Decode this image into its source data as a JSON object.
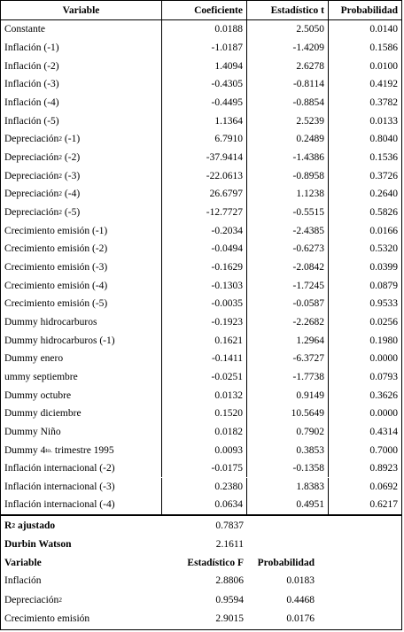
{
  "table": {
    "header": [
      "Variable",
      "Coeficiente",
      "Estadístico t",
      "Probabilidad"
    ],
    "rows": [
      {
        "variable": {
          "text": "Constante"
        },
        "values": [
          "0.0188",
          "2.5050",
          "0.0140"
        ]
      },
      {
        "variable": {
          "text": "Inflación (-1)"
        },
        "values": [
          "-1.0187",
          "-1.4209",
          "0.1586"
        ]
      },
      {
        "variable": {
          "text": "Inflación (-2)"
        },
        "values": [
          "1.4094",
          "2.6278",
          "0.0100"
        ]
      },
      {
        "variable": {
          "text": "Inflación (-3)"
        },
        "values": [
          "-0.4305",
          "-0.8114",
          "0.4192"
        ]
      },
      {
        "variable": {
          "text": "Inflación (-4)"
        },
        "values": [
          "-0.4495",
          "-0.8854",
          "0.3782"
        ]
      },
      {
        "variable": {
          "text": "Inflación (-5)"
        },
        "values": [
          "1.1364",
          "2.5239",
          "0.0133"
        ]
      },
      {
        "variable": {
          "text": "Depreciación",
          "sup": "2",
          "suffix": " (-1)"
        },
        "values": [
          "6.7910",
          "0.2489",
          "0.8040"
        ]
      },
      {
        "variable": {
          "text": "Depreciación",
          "sup": "2",
          "suffix": " (-2)"
        },
        "values": [
          "-37.9414",
          "-1.4386",
          "0.1536"
        ]
      },
      {
        "variable": {
          "text": "Depreciación",
          "sup": "2",
          "suffix": " (-3)"
        },
        "values": [
          "-22.0613",
          "-0.8958",
          "0.3726"
        ]
      },
      {
        "variable": {
          "text": "Depreciación",
          "sup": "2",
          "suffix": " (-4)"
        },
        "values": [
          "26.6797",
          "1.1238",
          "0.2640"
        ]
      },
      {
        "variable": {
          "text": "Depreciación",
          "sup": "2",
          "suffix": " (-5)"
        },
        "values": [
          "-12.7727",
          "-0.5515",
          "0.5826"
        ]
      },
      {
        "variable": {
          "text": "Crecimiento emisión (-1)"
        },
        "values": [
          "-0.2034",
          "-2.4385",
          "0.0166"
        ]
      },
      {
        "variable": {
          "text": "Crecimiento emisión (-2)"
        },
        "values": [
          "-0.0494",
          "-0.6273",
          "0.5320"
        ]
      },
      {
        "variable": {
          "text": "Crecimiento emisión (-3)"
        },
        "values": [
          "-0.1629",
          "-2.0842",
          "0.0399"
        ]
      },
      {
        "variable": {
          "text": "Crecimiento emisión (-4)"
        },
        "values": [
          "-0.1303",
          "-1.7245",
          "0.0879"
        ]
      },
      {
        "variable": {
          "text": "Crecimiento emisión (-5)"
        },
        "values": [
          "-0.0035",
          "-0.0587",
          "0.9533"
        ]
      },
      {
        "variable": {
          "text": "Dummy hidrocarburos"
        },
        "values": [
          "-0.1923",
          "-2.2682",
          "0.0256"
        ]
      },
      {
        "variable": {
          "text": "Dummy hidrocarburos (-1)"
        },
        "values": [
          "0.1621",
          "1.2964",
          "0.1980"
        ]
      },
      {
        "variable": {
          "text": "Dummy enero"
        },
        "values": [
          "-0.1411",
          "-6.3727",
          "0.0000"
        ]
      },
      {
        "variable": {
          "text": "ummy septiembre"
        },
        "values": [
          "-0.0251",
          "-1.7738",
          "0.0793"
        ]
      },
      {
        "variable": {
          "text": "Dummy octubre"
        },
        "values": [
          "0.0132",
          "0.9149",
          "0.3626"
        ]
      },
      {
        "variable": {
          "text": "Dummy diciembre"
        },
        "values": [
          "0.1520",
          "10.5649",
          "0.0000"
        ]
      },
      {
        "variable": {
          "text": "Dummy Niño"
        },
        "values": [
          "0.0182",
          "0.7902",
          "0.4314"
        ]
      },
      {
        "variable": {
          "text": "Dummy 4",
          "sup": "to.",
          "suffix": " trimestre 1995"
        },
        "values": [
          "0.0093",
          "0.3853",
          "0.7000"
        ]
      },
      {
        "variable": {
          "text": "Inflación internacional (-2)"
        },
        "values": [
          "-0.0175",
          "-0.1358",
          "0.8923"
        ]
      },
      {
        "variable": {
          "text": "Inflación internacional (-3)"
        },
        "values": [
          "0.2380",
          "1.8383",
          "0.0692"
        ]
      },
      {
        "variable": {
          "text": "Inflación internacional (-4)"
        },
        "values": [
          "0.0634",
          "0.4951",
          "0.6217"
        ]
      }
    ]
  },
  "stats": [
    {
      "variable": {
        "text": "R",
        "sup": "2",
        "suffix": " ajustado"
      },
      "value": "0.7837"
    },
    {
      "variable": {
        "text": "Durbin Watson"
      },
      "value": "2.1611"
    }
  ],
  "f_table": {
    "header": [
      "Variable",
      "Estadístico F",
      "Probabilidad"
    ],
    "rows": [
      {
        "variable": {
          "text": "Inflación"
        },
        "values": [
          "2.8806",
          "0.0183"
        ]
      },
      {
        "variable": {
          "text": "Depreciación",
          "sup": "2"
        },
        "values": [
          "0.9594",
          "0.4468"
        ]
      },
      {
        "variable": {
          "text": "Crecimiento emisión"
        },
        "values": [
          "2.9015",
          "0.0176"
        ]
      }
    ]
  }
}
